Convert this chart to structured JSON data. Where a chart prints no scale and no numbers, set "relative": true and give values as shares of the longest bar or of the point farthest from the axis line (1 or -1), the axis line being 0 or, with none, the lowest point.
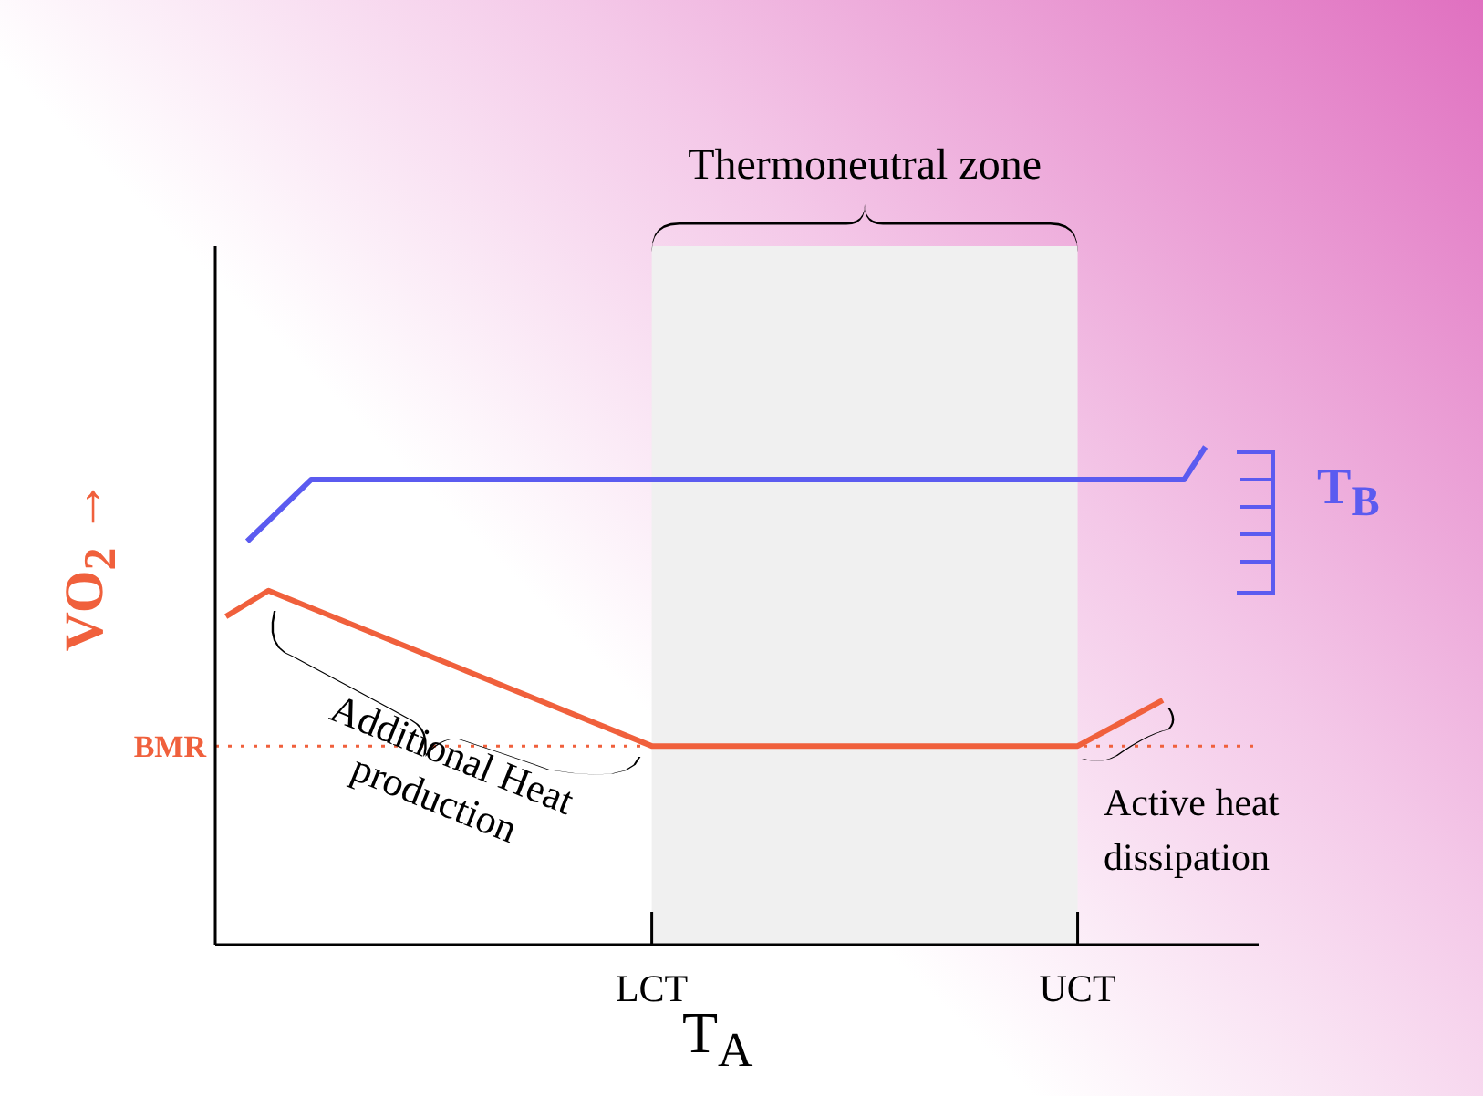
{
  "chart_data": {
    "type": "line",
    "relative": true,
    "xlabel": "T$_{A}$",
    "ylabel": "VO$_{2}$ →",
    "grid": false,
    "legend": "right",
    "marker": "none",
    "line_style": "solid",
    "categories": [
      null,
      null,
      null,
      null,
      null,
      null,
      null,
      null,
      null,
      null,
      null,
      null,
      null,
      null,
      null,
      null,
      null,
      null,
      null,
      null,
      "LCT",
      null,
      null,
      null,
      null,
      null,
      null,
      null,
      null,
      null,
      null,
      null,
      null,
      null,
      null,
      null,
      null,
      null,
      null,
      null,
      "UCT",
      null,
      null,
      null,
      null,
      null,
      null,
      null,
      null
    ],
    "series": [
      {
        "name": "T$_{B}$",
        "color": "#5b5bf0",
        "values": [
          null,
          0.81,
          null,
          null,
          0.934,
          null,
          null,
          null,
          null,
          null,
          null,
          null,
          null,
          null,
          null,
          null,
          null,
          null,
          null,
          null,
          null,
          null,
          null,
          null,
          null,
          null,
          null,
          null,
          null,
          null,
          null,
          null,
          null,
          null,
          null,
          null,
          null,
          null,
          null,
          null,
          null,
          null,
          null,
          null,
          null,
          0.934,
          1,
          null,
          null
        ]
      },
      {
        "color": "#f0603c",
        "values": [
          0.659,
          null,
          0.711,
          null,
          null,
          null,
          null,
          null,
          null,
          null,
          null,
          null,
          null,
          null,
          null,
          null,
          null,
          null,
          null,
          null,
          0.399,
          null,
          null,
          null,
          null,
          null,
          null,
          null,
          null,
          null,
          null,
          null,
          null,
          null,
          null,
          null,
          null,
          null,
          null,
          null,
          0.399,
          null,
          null,
          null,
          0.491,
          null,
          null,
          null,
          null
        ]
      }
    ],
    "ref_lines": [
      {
        "axis": "y",
        "value": 0.399,
        "label": "BMR",
        "color": "#f0603c",
        "line_style": "dotted"
      }
    ],
    "bands": [
      {
        "axis": "x",
        "from": "LCT",
        "to": "UCT",
        "label": "Thermoneutral zone",
        "color": "#f0f0f0"
      }
    ],
    "annotations": [
      "Additional Heat production",
      "Active heat dissipation"
    ]
  }
}
